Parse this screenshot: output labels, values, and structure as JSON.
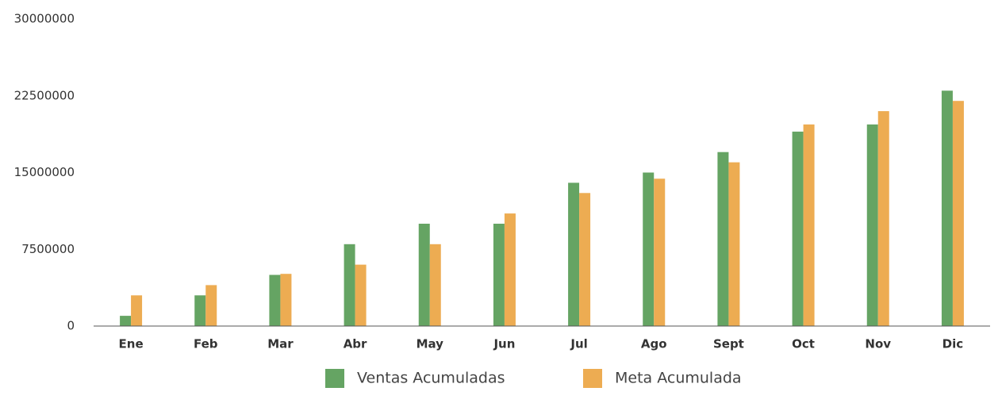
{
  "chart_data": {
    "type": "bar",
    "categories": [
      "Ene",
      "Feb",
      "Mar",
      "Abr",
      "May",
      "Jun",
      "Jul",
      "Ago",
      "Sept",
      "Oct",
      "Nov",
      "Dic"
    ],
    "series": [
      {
        "name": "Ventas Acumuladas",
        "color": "#65a463",
        "values": [
          1000000,
          3000000,
          5000000,
          8000000,
          10000000,
          10000000,
          14000000,
          15000000,
          17000000,
          19000000,
          19700000,
          23000000
        ]
      },
      {
        "name": "Meta Acumulada",
        "color": "#edac52",
        "values": [
          3000000,
          4000000,
          5100000,
          6000000,
          8000000,
          11000000,
          13000000,
          14400000,
          16000000,
          19700000,
          21000000,
          22000000
        ]
      }
    ],
    "ylim": [
      0,
      30000000
    ],
    "yticks": [
      0,
      7500000,
      15000000,
      22500000,
      30000000
    ],
    "grid": false
  }
}
